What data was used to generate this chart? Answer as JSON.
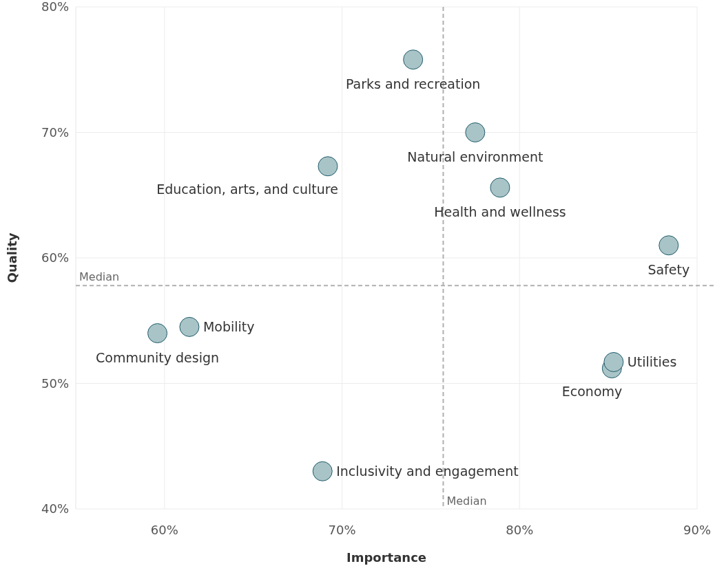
{
  "chart_data": {
    "type": "scatter",
    "xlabel": "Importance",
    "ylabel": "Quality",
    "xlim": [
      55,
      90
    ],
    "ylim": [
      40,
      80
    ],
    "xticks": [
      {
        "value": 60,
        "label": "60%"
      },
      {
        "value": 70,
        "label": "70%"
      },
      {
        "value": 80,
        "label": "80%"
      },
      {
        "value": 90,
        "label": "90%"
      }
    ],
    "yticks": [
      {
        "value": 40,
        "label": "40%"
      },
      {
        "value": 50,
        "label": "50%"
      },
      {
        "value": 60,
        "label": "60%"
      },
      {
        "value": 70,
        "label": "70%"
      },
      {
        "value": 80,
        "label": "80%"
      }
    ],
    "grid": true,
    "marker": "circle",
    "series": [
      {
        "color": "#a9c4c7",
        "x": [
          74.0,
          77.5,
          69.2,
          78.9,
          88.4,
          61.4,
          59.6,
          85.3,
          85.2,
          68.9
        ],
        "values": [
          75.8,
          70.0,
          67.3,
          65.6,
          61.0,
          54.5,
          54.0,
          51.7,
          51.2,
          43.0
        ]
      }
    ],
    "annotations": [
      {
        "text": "Parks and recreation",
        "x": 74.0,
        "y": 75.8
      },
      {
        "text": "Natural environment",
        "x": 77.5,
        "y": 70.0
      },
      {
        "text": "Education, arts, and culture",
        "x": 69.2,
        "y": 67.3
      },
      {
        "text": "Health and wellness",
        "x": 78.9,
        "y": 65.6
      },
      {
        "text": "Safety",
        "x": 88.4,
        "y": 61.0
      },
      {
        "text": "Mobility",
        "x": 61.4,
        "y": 54.5
      },
      {
        "text": "Community design",
        "x": 59.6,
        "y": 54.0
      },
      {
        "text": "Utilities",
        "x": 85.3,
        "y": 51.7
      },
      {
        "text": "Economy",
        "x": 85.2,
        "y": 51.2
      },
      {
        "text": "Inclusivity and engagement",
        "x": 68.9,
        "y": 43.0
      }
    ],
    "ref_lines": [
      {
        "axis": "x",
        "value": 75.7,
        "label": "Median",
        "color": "#b0b0b0",
        "line_style": "dashed"
      },
      {
        "axis": "y",
        "value": 57.8,
        "label": "Median",
        "color": "#b0b0b0",
        "line_style": "dashed"
      }
    ]
  }
}
